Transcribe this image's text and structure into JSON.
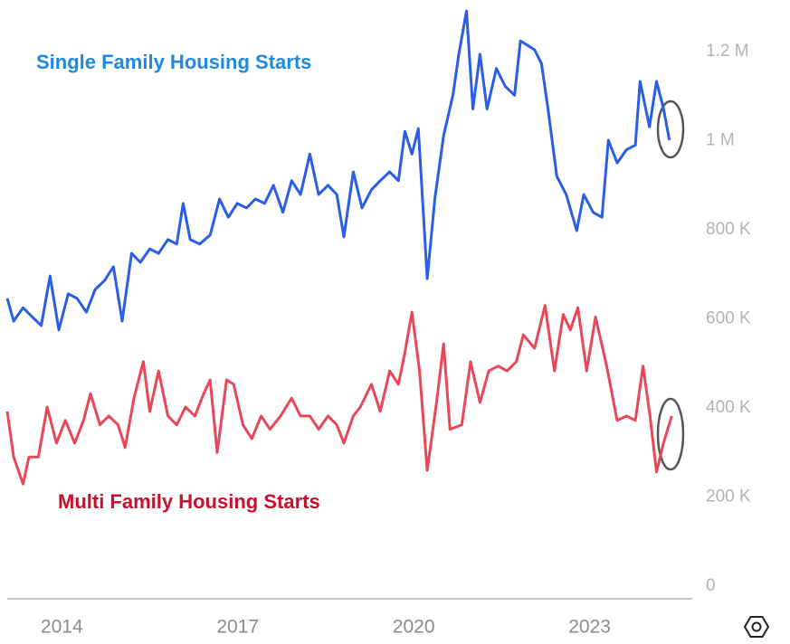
{
  "chart_data": {
    "type": "line",
    "series": [
      {
        "name": "Single Family Housing Starts",
        "color": "#2a5ee8",
        "label_color": "#1e88e5",
        "x": [
          2013.07,
          2013.18,
          2013.34,
          2013.49,
          2013.65,
          2013.8,
          2013.95,
          2014.11,
          2014.26,
          2014.42,
          2014.57,
          2014.73,
          2014.88,
          2015.03,
          2015.19,
          2015.34,
          2015.5,
          2015.65,
          2015.81,
          2015.96,
          2016.07,
          2016.19,
          2016.35,
          2016.53,
          2016.69,
          2016.84,
          2016.99,
          2017.15,
          2017.3,
          2017.46,
          2017.61,
          2017.77,
          2017.92,
          2018.07,
          2018.23,
          2018.38,
          2018.54,
          2018.69,
          2018.81,
          2018.97,
          2019.12,
          2019.28,
          2019.43,
          2019.59,
          2019.74,
          2019.85,
          2019.97,
          2020.08,
          2020.23,
          2020.36,
          2020.51,
          2020.67,
          2020.77,
          2020.9,
          2021.01,
          2021.13,
          2021.25,
          2021.41,
          2021.56,
          2021.72,
          2021.82,
          2022.06,
          2022.18,
          2022.29,
          2022.44,
          2022.6,
          2022.78,
          2022.9,
          2023.06,
          2023.21,
          2023.32,
          2023.47,
          2023.63,
          2023.78,
          2023.86,
          2024.02,
          2024.14,
          2024.26,
          2024.36
        ],
        "values": [
          646000,
          595000,
          625000,
          605000,
          585000,
          696000,
          575000,
          656000,
          646000,
          615000,
          666000,
          686000,
          717000,
          595000,
          747000,
          727000,
          757000,
          747000,
          778000,
          768000,
          859000,
          778000,
          768000,
          788000,
          869000,
          828000,
          859000,
          849000,
          869000,
          859000,
          900000,
          839000,
          910000,
          879000,
          970000,
          879000,
          900000,
          879000,
          784000,
          930000,
          849000,
          890000,
          910000,
          930000,
          910000,
          1021000,
          970000,
          1027000,
          690000,
          869000,
          1011000,
          1103000,
          1194000,
          1291000,
          1071000,
          1194000,
          1071000,
          1162000,
          1122000,
          1102000,
          1224000,
          1204000,
          1173000,
          1071000,
          920000,
          879000,
          798000,
          879000,
          839000,
          828000,
          1001000,
          950000,
          980000,
          990000,
          1133000,
          1031000,
          1133000,
          1072000,
          1001000
        ]
      },
      {
        "name": "Multi Family Housing Starts",
        "color": "#e8475a",
        "label_color": "#c8102e",
        "x": [
          2013.07,
          2013.18,
          2013.34,
          2013.44,
          2013.6,
          2013.75,
          2013.91,
          2014.06,
          2014.22,
          2014.37,
          2014.49,
          2014.65,
          2014.8,
          2014.96,
          2015.08,
          2015.23,
          2015.39,
          2015.5,
          2015.65,
          2015.81,
          2015.96,
          2016.11,
          2016.27,
          2016.42,
          2016.53,
          2016.65,
          2016.81,
          2016.93,
          2017.09,
          2017.24,
          2017.4,
          2017.55,
          2017.73,
          2017.92,
          2018.07,
          2018.23,
          2018.38,
          2018.54,
          2018.69,
          2018.81,
          2018.97,
          2019.09,
          2019.28,
          2019.43,
          2019.59,
          2019.74,
          2019.85,
          2019.97,
          2020.1,
          2020.23,
          2020.39,
          2020.51,
          2020.62,
          2020.82,
          2020.97,
          2021.13,
          2021.28,
          2021.44,
          2021.59,
          2021.75,
          2021.87,
          2022.06,
          2022.24,
          2022.4,
          2022.55,
          2022.67,
          2022.8,
          2022.95,
          2023.1,
          2023.29,
          2023.47,
          2023.63,
          2023.78,
          2023.91,
          2024.03,
          2024.14,
          2024.26,
          2024.4
        ],
        "values": [
          392000,
          290000,
          229000,
          290000,
          290000,
          402000,
          321000,
          372000,
          321000,
          372000,
          432000,
          362000,
          382000,
          362000,
          311000,
          422000,
          504000,
          392000,
          483000,
          382000,
          362000,
          402000,
          382000,
          432000,
          463000,
          300000,
          463000,
          453000,
          362000,
          331000,
          382000,
          352000,
          382000,
          422000,
          382000,
          382000,
          352000,
          382000,
          362000,
          321000,
          382000,
          402000,
          453000,
          392000,
          483000,
          453000,
          524000,
          615000,
          483000,
          260000,
          412000,
          544000,
          352000,
          362000,
          504000,
          412000,
          483000,
          494000,
          483000,
          504000,
          564000,
          534000,
          630000,
          483000,
          610000,
          575000,
          625000,
          483000,
          604000,
          494000,
          372000,
          382000,
          372000,
          494000,
          382000,
          256000,
          321000,
          382000
        ]
      }
    ],
    "xlim": [
      2013.07,
      2024.75
    ],
    "xticks": [
      2014,
      2017,
      2020,
      2023
    ],
    "ylim": [
      0,
      1300000
    ],
    "yticks": [
      0,
      {
        "value": 200000,
        "label": "200 K"
      },
      {
        "value": 400000,
        "label": "400 K"
      },
      {
        "value": 600000,
        "label": "600 K"
      },
      {
        "value": 800000,
        "label": "800 K"
      },
      {
        "value": 1000000,
        "label": "1 M"
      },
      {
        "value": 1200000,
        "label": "1.2 M"
      }
    ],
    "grid": false
  }
}
